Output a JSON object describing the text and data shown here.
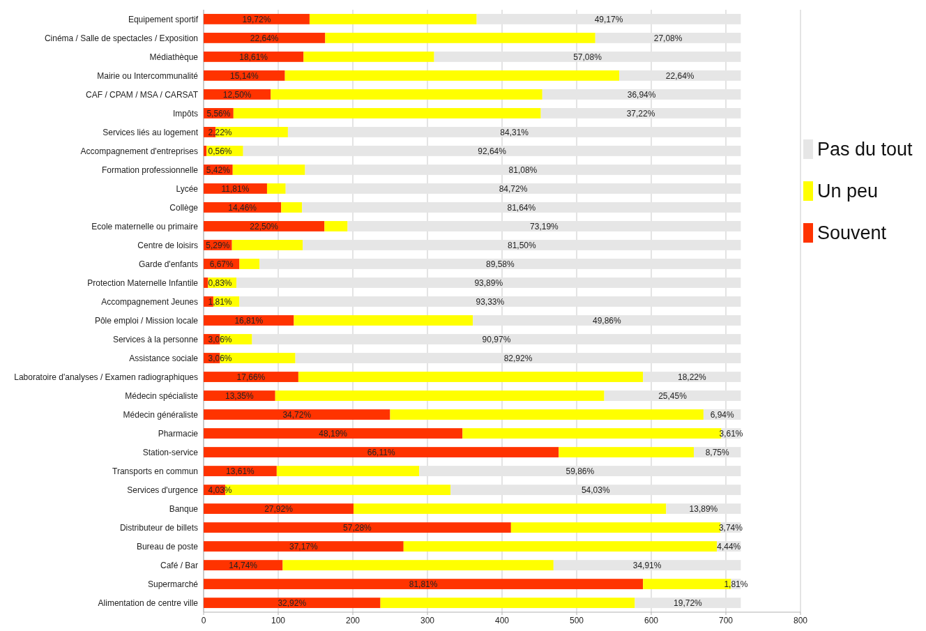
{
  "chart_data": {
    "type": "bar",
    "orientation": "horizontal",
    "stacked": true,
    "categories": [
      "Equipement sportif",
      "Cinéma / Salle de spectacles / Exposition",
      "Médiathèque",
      "Mairie ou Intercommunalité",
      "CAF / CPAM / MSA / CARSAT",
      "Impôts",
      "Services liés au logement",
      "Accompagnement d'entreprises",
      "Formation professionnelle",
      "Lycée",
      "Collège",
      "Ecole maternelle ou primaire",
      "Centre de loisirs",
      "Garde d'enfants",
      "Protection Maternelle Infantile",
      "Accompagnement Jeunes",
      "Pôle emploi / Mission locale",
      "Services à la personne",
      "Assistance sociale",
      "Laboratoire d'analyses / Examen radiographiques",
      "Médecin spécialiste",
      "Médecin généraliste",
      "Pharmacie",
      "Station-service",
      "Transports en commun",
      "Services d'urgence",
      "Banque",
      "Distributeur de billets",
      "Bureau de poste",
      "Café / Bar",
      "Supermarché",
      "Alimentation de centre ville"
    ],
    "series": [
      {
        "name": "Souvent",
        "color": "#ff3300",
        "values": [
          142,
          163,
          134,
          109,
          90,
          40,
          16,
          4,
          39,
          85,
          104,
          162,
          38,
          48,
          6,
          13,
          121,
          22,
          22,
          127,
          96,
          250,
          347,
          476,
          98,
          29,
          201,
          412,
          268,
          106,
          589,
          237
        ]
      },
      {
        "name": "Un peu",
        "color": "#ffff00",
        "values": [
          224,
          362,
          175,
          448,
          364,
          412,
          97,
          49,
          97,
          25,
          28,
          31,
          95,
          27,
          38,
          35,
          240,
          43,
          101,
          462,
          441,
          420,
          347,
          181,
          191,
          302,
          419,
          281,
          420,
          363,
          118,
          341
        ]
      },
      {
        "name": "Pas du tout",
        "color": "#e6e6e6",
        "values": [
          354,
          195,
          411,
          163,
          266,
          268,
          607,
          667,
          584,
          610,
          588,
          527,
          587,
          645,
          676,
          672,
          359,
          655,
          597,
          131,
          183,
          50,
          26,
          63,
          431,
          389,
          100,
          27,
          32,
          251,
          13,
          142
        ]
      }
    ],
    "annotations": [
      {
        "text": "19,72%",
        "x": 71,
        "y": "Equipement sportif"
      },
      {
        "text": "22,64%",
        "x": 81.5,
        "y": "Cinéma / Salle de spectacles / Exposition"
      },
      {
        "text": "18,61%",
        "x": 67,
        "y": "Médiathèque"
      },
      {
        "text": "15,14%",
        "x": 54.5,
        "y": "Mairie ou Intercommunalité"
      },
      {
        "text": "12,50%",
        "x": 45,
        "y": "CAF / CPAM / MSA / CARSAT"
      },
      {
        "text": "5,56%",
        "x": 20,
        "y": "Impôts"
      },
      {
        "text": "2,22%",
        "x": 22,
        "y": "Services liés au logement"
      },
      {
        "text": "0,56%",
        "x": 22,
        "y": "Accompagnement d'entreprises"
      },
      {
        "text": "5,42%",
        "x": 19.5,
        "y": "Formation professionnelle"
      },
      {
        "text": "11,81%",
        "x": 42.5,
        "y": "Lycée"
      },
      {
        "text": "14,46%",
        "x": 52,
        "y": "Collège"
      },
      {
        "text": "22,50%",
        "x": 81,
        "y": "Ecole maternelle ou primaire"
      },
      {
        "text": "5,29%",
        "x": 19,
        "y": "Centre de loisirs"
      },
      {
        "text": "6,67%",
        "x": 24,
        "y": "Garde d'enfants"
      },
      {
        "text": "0,83%",
        "x": 22,
        "y": "Protection Maternelle Infantile"
      },
      {
        "text": "1,81%",
        "x": 22,
        "y": "Accompagnement Jeunes"
      },
      {
        "text": "16,81%",
        "x": 60.5,
        "y": "Pôle emploi / Mission locale"
      },
      {
        "text": "3,06%",
        "x": 22,
        "y": "Services à la personne"
      },
      {
        "text": "3,06%",
        "x": 22,
        "y": "Assistance sociale"
      },
      {
        "text": "17,66%",
        "x": 63.5,
        "y": "Laboratoire d'analyses / Examen radiographiques"
      },
      {
        "text": "13,35%",
        "x": 48,
        "y": "Médecin spécialiste"
      },
      {
        "text": "34,72%",
        "x": 125,
        "y": "Médecin généraliste"
      },
      {
        "text": "48,19%",
        "x": 173.5,
        "y": "Pharmacie"
      },
      {
        "text": "66,11%",
        "x": 238,
        "y": "Station-service"
      },
      {
        "text": "13,61%",
        "x": 49,
        "y": "Transports en commun"
      },
      {
        "text": "4,03%",
        "x": 22,
        "y": "Services d'urgence"
      },
      {
        "text": "27,92%",
        "x": 100.5,
        "y": "Banque"
      },
      {
        "text": "57,28%",
        "x": 206,
        "y": "Distributeur de billets"
      },
      {
        "text": "37,17%",
        "x": 134,
        "y": "Bureau de poste"
      },
      {
        "text": "14,74%",
        "x": 53,
        "y": "Café / Bar"
      },
      {
        "text": "81,81%",
        "x": 294.5,
        "y": "Supermarché"
      },
      {
        "text": "32,92%",
        "x": 118.5,
        "y": "Alimentation de centre ville"
      },
      {
        "text": "49,17%",
        "x": 543,
        "y": "Equipement sportif"
      },
      {
        "text": "27,08%",
        "x": 622.5,
        "y": "Cinéma / Salle de spectacles / Exposition"
      },
      {
        "text": "57,08%",
        "x": 514.5,
        "y": "Médiathèque"
      },
      {
        "text": "22,64%",
        "x": 638.5,
        "y": "Mairie ou Intercommunalité"
      },
      {
        "text": "36,94%",
        "x": 587,
        "y": "CAF / CPAM / MSA / CARSAT"
      },
      {
        "text": "37,22%",
        "x": 586,
        "y": "Impôts"
      },
      {
        "text": "84,31%",
        "x": 416.5,
        "y": "Services liés au logement"
      },
      {
        "text": "92,64%",
        "x": 386.5,
        "y": "Accompagnement d'entreprises"
      },
      {
        "text": "81,08%",
        "x": 428,
        "y": "Formation professionnelle"
      },
      {
        "text": "84,72%",
        "x": 415,
        "y": "Lycée"
      },
      {
        "text": "81,64%",
        "x": 426,
        "y": "Collège"
      },
      {
        "text": "73,19%",
        "x": 456.5,
        "y": "Ecole maternelle ou primaire"
      },
      {
        "text": "81,50%",
        "x": 426.5,
        "y": "Centre de loisirs"
      },
      {
        "text": "89,58%",
        "x": 397.5,
        "y": "Garde d'enfants"
      },
      {
        "text": "93,89%",
        "x": 382,
        "y": "Protection Maternelle Infantile"
      },
      {
        "text": "93,33%",
        "x": 384,
        "y": "Accompagnement Jeunes"
      },
      {
        "text": "49,86%",
        "x": 540.5,
        "y": "Pôle emploi / Mission locale"
      },
      {
        "text": "90,97%",
        "x": 392.5,
        "y": "Services à la personne"
      },
      {
        "text": "82,92%",
        "x": 421.5,
        "y": "Assistance sociale"
      },
      {
        "text": "18,22%",
        "x": 654.5,
        "y": "Laboratoire d'analyses / Examen radiographiques"
      },
      {
        "text": "25,45%",
        "x": 628.5,
        "y": "Médecin spécialiste"
      },
      {
        "text": "6,94%",
        "x": 695,
        "y": "Médecin généraliste"
      },
      {
        "text": "3,61%",
        "x": 707,
        "y": "Pharmacie"
      },
      {
        "text": "8,75%",
        "x": 688.5,
        "y": "Station-service"
      },
      {
        "text": "59,86%",
        "x": 504.5,
        "y": "Transports en commun"
      },
      {
        "text": "54,03%",
        "x": 525.5,
        "y": "Services d'urgence"
      },
      {
        "text": "13,89%",
        "x": 670,
        "y": "Banque"
      },
      {
        "text": "3,74%",
        "x": 706.5,
        "y": "Distributeur de billets"
      },
      {
        "text": "4,44%",
        "x": 704,
        "y": "Bureau de poste"
      },
      {
        "text": "34,91%",
        "x": 594.5,
        "y": "Café / Bar"
      },
      {
        "text": "1,81%",
        "x": 713.5,
        "y": "Supermarché"
      },
      {
        "text": "19,72%",
        "x": 649,
        "y": "Alimentation de centre ville"
      }
    ],
    "xlim": [
      0,
      800
    ],
    "xticks": [
      0,
      100,
      200,
      300,
      400,
      500,
      600,
      700,
      800
    ],
    "grid": "x",
    "legend": "right"
  }
}
